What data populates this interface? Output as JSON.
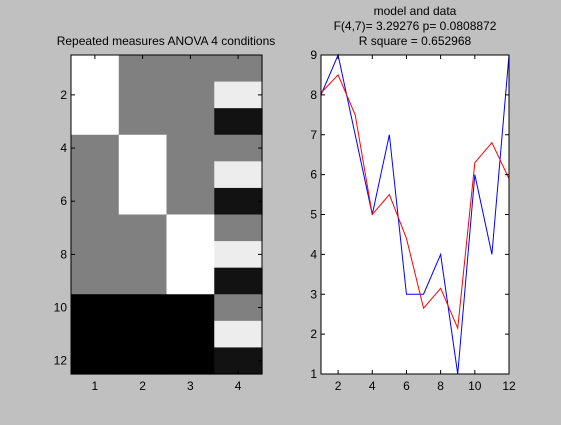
{
  "figure": {
    "background": "#c0c0c0"
  },
  "chart_data": [
    {
      "type": "heatmap",
      "title": "Repeated measures ANOVA 4 conditions",
      "rows": 12,
      "cols": 4,
      "x_ticks": [
        "1",
        "2",
        "3",
        "4"
      ],
      "y_ticks": [
        "2",
        "4",
        "6",
        "8",
        "10",
        "12"
      ],
      "y_tick_values": [
        2,
        4,
        6,
        8,
        10,
        12
      ],
      "colormap": "gray",
      "values": [
        [
          1.0,
          0.5,
          0.5,
          0.5
        ],
        [
          1.0,
          0.5,
          0.5,
          0.93
        ],
        [
          1.0,
          0.5,
          0.5,
          0.07
        ],
        [
          0.5,
          1.0,
          0.5,
          0.5
        ],
        [
          0.5,
          1.0,
          0.5,
          0.93
        ],
        [
          0.5,
          1.0,
          0.5,
          0.07
        ],
        [
          0.5,
          0.5,
          1.0,
          0.5
        ],
        [
          0.5,
          0.5,
          1.0,
          0.93
        ],
        [
          0.5,
          0.5,
          1.0,
          0.07
        ],
        [
          0.0,
          0.0,
          0.0,
          0.5
        ],
        [
          0.0,
          0.0,
          0.0,
          0.93
        ],
        [
          0.0,
          0.0,
          0.0,
          0.07
        ]
      ]
    },
    {
      "type": "line",
      "title_lines": [
        "model and data",
        "F(4,7)= 3.29276 p= 0.0808872",
        "R square = 0.652968"
      ],
      "x": [
        1,
        2,
        3,
        4,
        5,
        6,
        7,
        8,
        9,
        10,
        11,
        12
      ],
      "xlim": [
        1,
        12
      ],
      "ylim": [
        1,
        9
      ],
      "x_ticks": [
        2,
        4,
        6,
        8,
        10,
        12
      ],
      "y_ticks": [
        1,
        2,
        3,
        4,
        5,
        6,
        7,
        8,
        9
      ],
      "series": [
        {
          "color": "#0000ff",
          "values": [
            8,
            9,
            7,
            5,
            7,
            3,
            3,
            4,
            1,
            6,
            4,
            9
          ]
        },
        {
          "color": "#ff0000",
          "values": [
            8.05,
            8.5,
            7.5,
            5,
            5.5,
            4.4,
            2.65,
            3.15,
            2.15,
            6.3,
            6.8,
            5.9
          ]
        }
      ]
    }
  ]
}
